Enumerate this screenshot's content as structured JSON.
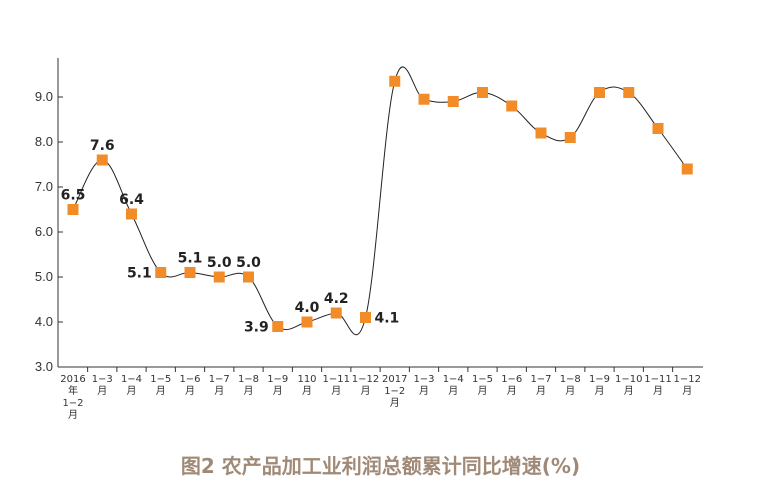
{
  "chart_data": {
    "type": "line",
    "title": "图2 农产品加工业利润总额累计同比增速(%)",
    "xlabel": "",
    "ylabel": "",
    "ylim": [
      3.0,
      10.0
    ],
    "yticks": [
      {
        "value": 3.0,
        "label": "3.0"
      },
      {
        "value": 4.0,
        "label": "4.0"
      },
      {
        "value": 5.0,
        "label": "5.0"
      },
      {
        "value": 6.0,
        "label": "6.0"
      },
      {
        "value": 7.0,
        "label": "7.0"
      },
      {
        "value": 8.0,
        "label": "8.0"
      },
      {
        "value": 9.0,
        "label": "9.0"
      }
    ],
    "categories": [
      [
        "2016",
        "年",
        "1−2",
        "月"
      ],
      [
        "1−3",
        "月"
      ],
      [
        "1−4",
        "月"
      ],
      [
        "1−5",
        "月"
      ],
      [
        "1−6",
        "月"
      ],
      [
        "1−7",
        "月"
      ],
      [
        "1−8",
        "月"
      ],
      [
        "1−9",
        "月"
      ],
      [
        "110",
        "月"
      ],
      [
        "1−11",
        "月"
      ],
      [
        "1−12",
        "月"
      ],
      [
        "2017",
        "1−2",
        "月"
      ],
      [
        "1−3",
        "月"
      ],
      [
        "1−4",
        "月"
      ],
      [
        "1−5",
        "月"
      ],
      [
        "1−6",
        "月"
      ],
      [
        "1−7",
        "月"
      ],
      [
        "1−8",
        "月"
      ],
      [
        "1−9",
        "月"
      ],
      [
        "1−10",
        "月"
      ],
      [
        "1−11",
        "月"
      ],
      [
        "1−12",
        "月"
      ]
    ],
    "series": [
      {
        "name": "利润总额累计同比增速",
        "color": "#f28c28",
        "line_color": "#222222",
        "values": [
          6.5,
          7.6,
          6.4,
          5.1,
          5.1,
          5.0,
          5.0,
          3.9,
          4.0,
          4.2,
          4.1,
          9.35,
          8.95,
          8.9,
          9.1,
          8.8,
          8.2,
          8.1,
          9.1,
          9.1,
          8.3,
          7.4
        ]
      }
    ],
    "data_labels": [
      {
        "index": 0,
        "text": "6.5",
        "pos": "above"
      },
      {
        "index": 1,
        "text": "7.6",
        "pos": "above"
      },
      {
        "index": 2,
        "text": "6.4",
        "pos": "above"
      },
      {
        "index": 3,
        "text": "5.1",
        "pos": "left"
      },
      {
        "index": 4,
        "text": "5.1",
        "pos": "above"
      },
      {
        "index": 5,
        "text": "5.0",
        "pos": "above"
      },
      {
        "index": 6,
        "text": "5.0",
        "pos": "above"
      },
      {
        "index": 7,
        "text": "3.9",
        "pos": "left"
      },
      {
        "index": 8,
        "text": "4.0",
        "pos": "above"
      },
      {
        "index": 9,
        "text": "4.2",
        "pos": "above"
      },
      {
        "index": 10,
        "text": "4.1",
        "pos": "right"
      }
    ]
  }
}
